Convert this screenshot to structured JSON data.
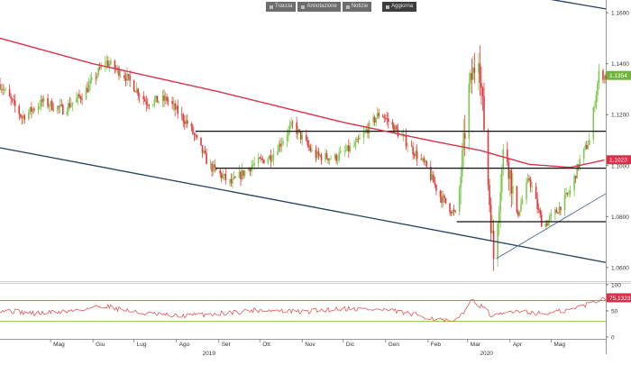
{
  "toolbar": {
    "buttons": [
      {
        "label": "Traccia",
        "icon": "pencil-icon"
      },
      {
        "label": "Annotazione",
        "icon": "note-icon"
      },
      {
        "label": "Notizie",
        "icon": "news-icon"
      },
      {
        "label": "Aggiorna",
        "icon": "refresh-icon"
      }
    ]
  },
  "colors": {
    "up": "#7ec850",
    "down": "#e03a3a",
    "ma": "#d9304a",
    "channel": "#24405e",
    "level": "#111111",
    "rsi": "#e05a5a",
    "rsi_upper": "#e05a5a",
    "rsi_lower": "#7ec850",
    "price_badge": "#6fb53a",
    "ma_badge": "#d9304a",
    "rsi_badge": "#d9304a"
  },
  "chart_data": [
    {
      "type": "candlestick",
      "title": "",
      "xlabel": "",
      "ylabel": "",
      "ylim": [
        1.055,
        1.165
      ],
      "y_ticks": [
        "1.1600",
        "1.1400",
        "1.1200",
        "1.1000",
        "1.0800",
        "1.0600"
      ],
      "y_tick_values": [
        1.16,
        1.14,
        1.12,
        1.1,
        1.08,
        1.06
      ],
      "x_range": [
        "2019-03-25",
        "2020-06-10"
      ],
      "month_labels": [
        {
          "label": "Mag",
          "date": "2019-05-01"
        },
        {
          "label": "Giu",
          "date": "2019-06-01"
        },
        {
          "label": "Lug",
          "date": "2019-07-01"
        },
        {
          "label": "Ago",
          "date": "2019-08-01"
        },
        {
          "label": "Set",
          "date": "2019-09-01"
        },
        {
          "label": "Ott",
          "date": "2019-10-01"
        },
        {
          "label": "Nov",
          "date": "2019-11-01"
        },
        {
          "label": "Dic",
          "date": "2019-12-01"
        },
        {
          "label": "Gen",
          "date": "2020-01-01"
        },
        {
          "label": "Feb",
          "date": "2020-02-01"
        },
        {
          "label": "Mar",
          "date": "2020-03-01"
        },
        {
          "label": "Apr",
          "date": "2020-04-01"
        },
        {
          "label": "Mag",
          "date": "2020-05-01"
        }
      ],
      "year_labels": [
        {
          "label": "2019",
          "date": "2019-08-20"
        },
        {
          "label": "2020",
          "date": "2020-03-10"
        }
      ],
      "price_path": [
        {
          "date": "2019-03-25",
          "value": 1.132
        },
        {
          "date": "2019-04-10",
          "value": 1.119
        },
        {
          "date": "2019-04-25",
          "value": 1.125
        },
        {
          "date": "2019-05-10",
          "value": 1.122
        },
        {
          "date": "2019-05-25",
          "value": 1.128
        },
        {
          "date": "2019-06-10",
          "value": 1.141
        },
        {
          "date": "2019-06-25",
          "value": 1.135
        },
        {
          "date": "2019-07-10",
          "value": 1.125
        },
        {
          "date": "2019-07-25",
          "value": 1.126
        },
        {
          "date": "2019-08-10",
          "value": 1.116
        },
        {
          "date": "2019-08-25",
          "value": 1.1
        },
        {
          "date": "2019-09-10",
          "value": 1.093
        },
        {
          "date": "2019-09-25",
          "value": 1.1
        },
        {
          "date": "2019-10-10",
          "value": 1.104
        },
        {
          "date": "2019-10-25",
          "value": 1.116
        },
        {
          "date": "2019-11-10",
          "value": 1.104
        },
        {
          "date": "2019-11-25",
          "value": 1.103
        },
        {
          "date": "2019-12-10",
          "value": 1.108
        },
        {
          "date": "2019-12-28",
          "value": 1.121
        },
        {
          "date": "2020-01-15",
          "value": 1.11
        },
        {
          "date": "2020-01-30",
          "value": 1.1
        },
        {
          "date": "2020-02-10",
          "value": 1.088
        },
        {
          "date": "2020-02-22",
          "value": 1.08
        },
        {
          "date": "2020-03-02",
          "value": 1.13
        },
        {
          "date": "2020-03-09",
          "value": 1.145
        },
        {
          "date": "2020-03-14",
          "value": 1.108
        },
        {
          "date": "2020-03-20",
          "value": 1.064
        },
        {
          "date": "2020-03-28",
          "value": 1.11
        },
        {
          "date": "2020-04-06",
          "value": 1.08
        },
        {
          "date": "2020-04-15",
          "value": 1.095
        },
        {
          "date": "2020-04-25",
          "value": 1.076
        },
        {
          "date": "2020-05-05",
          "value": 1.082
        },
        {
          "date": "2020-05-15",
          "value": 1.09
        },
        {
          "date": "2020-05-22",
          "value": 1.102
        },
        {
          "date": "2020-05-29",
          "value": 1.11
        },
        {
          "date": "2020-06-05",
          "value": 1.136
        },
        {
          "date": "2020-06-10",
          "value": 1.135
        }
      ],
      "moving_average": [
        {
          "date": "2019-03-25",
          "value": 1.15
        },
        {
          "date": "2019-06-01",
          "value": 1.14
        },
        {
          "date": "2019-09-01",
          "value": 1.129
        },
        {
          "date": "2019-12-01",
          "value": 1.117
        },
        {
          "date": "2020-02-01",
          "value": 1.11
        },
        {
          "date": "2020-03-10",
          "value": 1.106
        },
        {
          "date": "2020-04-15",
          "value": 1.1005
        },
        {
          "date": "2020-05-15",
          "value": 1.0993
        },
        {
          "date": "2020-06-10",
          "value": 1.1023
        }
      ],
      "channel_upper": [
        {
          "date": "2020-01-05",
          "value": 1.176
        },
        {
          "date": "2020-06-10",
          "value": 1.1615
        }
      ],
      "channel_lower": [
        {
          "date": "2019-03-25",
          "value": 1.107
        },
        {
          "date": "2020-06-10",
          "value": 1.062
        }
      ],
      "rising_trendline": [
        {
          "date": "2020-03-22",
          "value": 1.0635
        },
        {
          "date": "2020-06-10",
          "value": 1.089
        }
      ],
      "horizontal_levels": [
        {
          "from": "2019-08-15",
          "to": "2020-06-10",
          "value": 1.1135
        },
        {
          "from": "2019-08-30",
          "to": "2020-06-10",
          "value": 1.099
        },
        {
          "from": "2020-02-22",
          "to": "2020-06-10",
          "value": 1.078
        }
      ],
      "last_price": {
        "label": "1.1354",
        "value": 1.1354
      },
      "ma_last": {
        "label": "1.1023",
        "value": 1.1023
      }
    },
    {
      "type": "line",
      "title": "",
      "xlabel": "",
      "ylabel": "",
      "ylim": [
        0,
        100
      ],
      "y_ticks": [
        "100",
        "50",
        "0"
      ],
      "y_tick_values": [
        100,
        50,
        0
      ],
      "upper_band": 70,
      "lower_band": 30,
      "rsi_path": [
        {
          "date": "2019-03-25",
          "value": 52
        },
        {
          "date": "2019-04-20",
          "value": 45
        },
        {
          "date": "2019-05-15",
          "value": 50
        },
        {
          "date": "2019-06-10",
          "value": 60
        },
        {
          "date": "2019-07-05",
          "value": 46
        },
        {
          "date": "2019-08-01",
          "value": 40
        },
        {
          "date": "2019-09-01",
          "value": 45
        },
        {
          "date": "2019-10-01",
          "value": 52
        },
        {
          "date": "2019-11-01",
          "value": 48
        },
        {
          "date": "2019-12-01",
          "value": 55
        },
        {
          "date": "2020-01-01",
          "value": 52
        },
        {
          "date": "2020-02-01",
          "value": 38
        },
        {
          "date": "2020-02-20",
          "value": 27
        },
        {
          "date": "2020-03-05",
          "value": 72
        },
        {
          "date": "2020-03-20",
          "value": 38
        },
        {
          "date": "2020-04-05",
          "value": 52
        },
        {
          "date": "2020-04-25",
          "value": 44
        },
        {
          "date": "2020-05-15",
          "value": 52
        },
        {
          "date": "2020-06-10",
          "value": 75
        }
      ],
      "last_value": {
        "label": "75.1323",
        "value": 75.1323
      }
    }
  ]
}
